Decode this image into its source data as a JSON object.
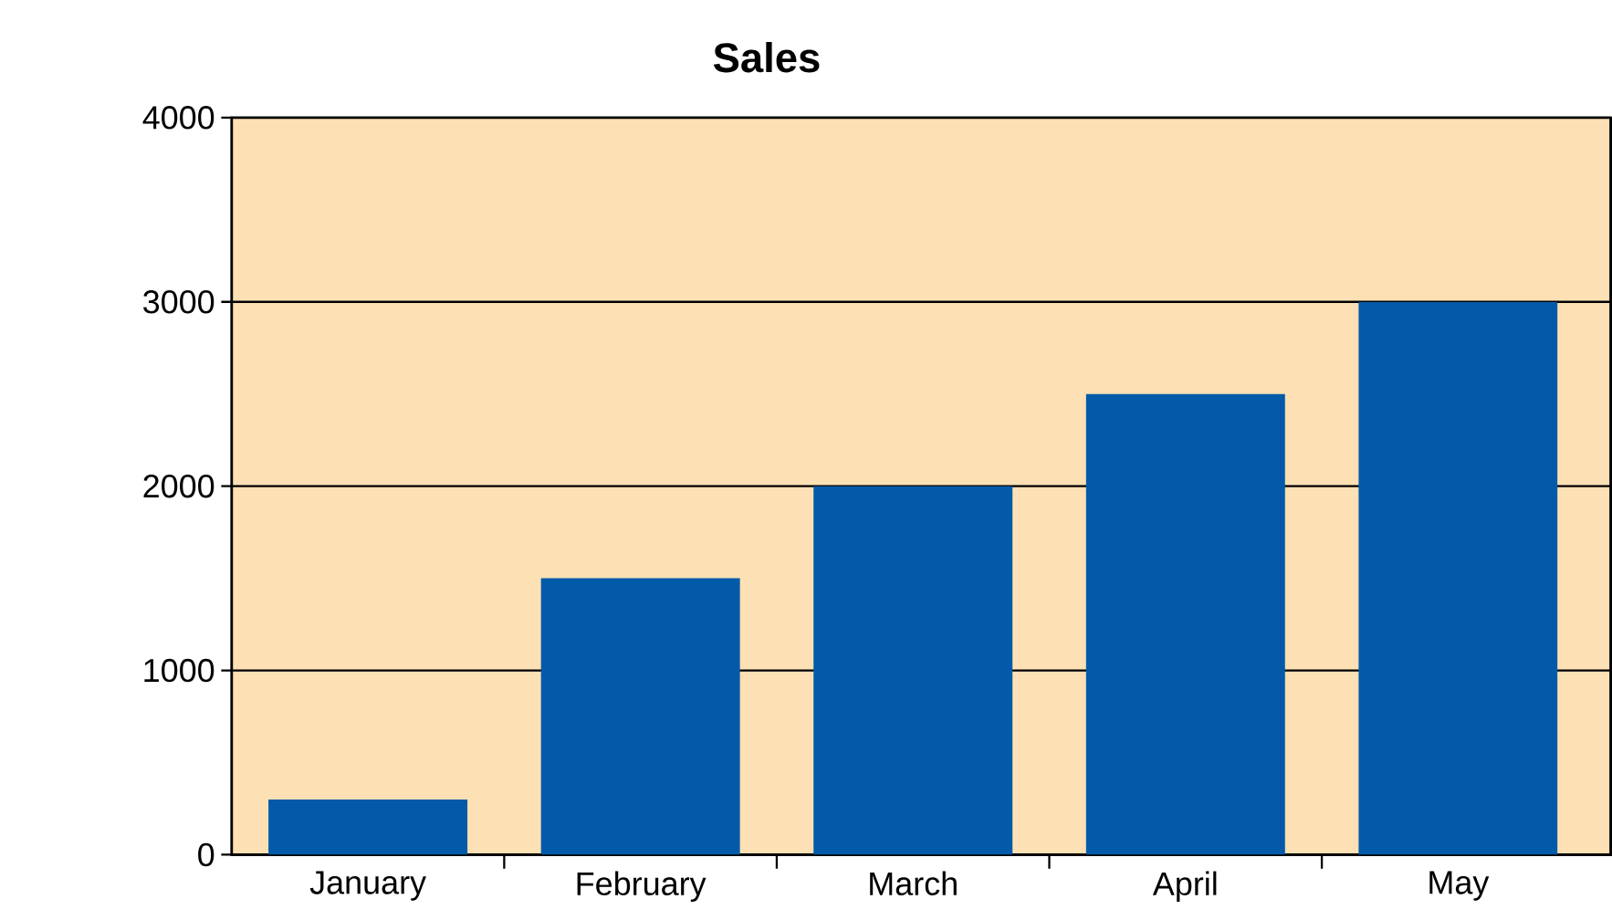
{
  "chart_data": {
    "type": "bar",
    "title": "Sales",
    "categories": [
      "January",
      "February",
      "March",
      "April",
      "May"
    ],
    "values": [
      300,
      1500,
      2000,
      2500,
      3000
    ],
    "color": "#025aa9",
    "ylim": [
      0,
      4000
    ],
    "yticks": [
      0,
      1000,
      2000,
      3000,
      4000
    ],
    "grid": "y"
  }
}
